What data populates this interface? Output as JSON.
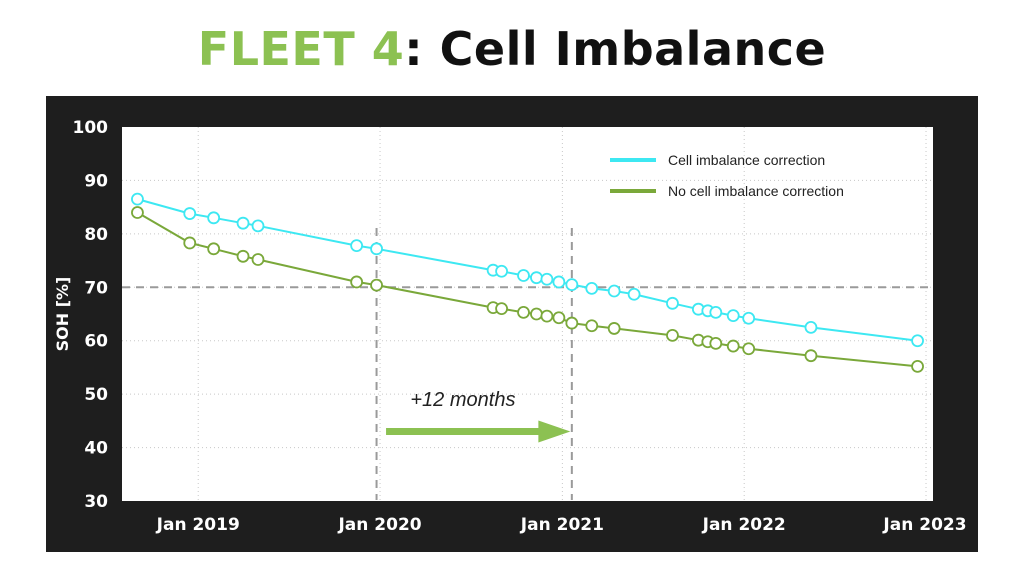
{
  "title": {
    "accent": "FLEET 4",
    "rest": ": Cell Imbalance"
  },
  "colors": {
    "accent": "#8cc152",
    "series_cyan": "#3de8f2",
    "series_green": "#7aa83a",
    "panel_bg": "#1e1e1e",
    "reference_line": "#9a9a9a",
    "arrow": "#8cc152"
  },
  "chart_data": {
    "type": "line",
    "ylabel": "SOH [%]",
    "xlabel": "",
    "ylim": [
      30,
      100
    ],
    "yticks": [
      30,
      40,
      50,
      60,
      70,
      80,
      90,
      100
    ],
    "xlim": [
      "2018-08-01",
      "2023-01-15"
    ],
    "xticks": [
      {
        "label": "Jan 2019",
        "date": "2019-01-01"
      },
      {
        "label": "Jan 2020",
        "date": "2020-01-01"
      },
      {
        "label": "Jan 2021",
        "date": "2021-01-01"
      },
      {
        "label": "Jan 2022",
        "date": "2022-01-01"
      },
      {
        "label": "Jan 2023",
        "date": "2023-01-01"
      }
    ],
    "grid": true,
    "legend_position": "top-right",
    "series": [
      {
        "name": "Cell imbalance correction",
        "color": "#3de8f2",
        "points": [
          {
            "x": "2018-09-01",
            "y": 86.5
          },
          {
            "x": "2018-12-15",
            "y": 83.8
          },
          {
            "x": "2019-02-01",
            "y": 83.0
          },
          {
            "x": "2019-04-01",
            "y": 82.0
          },
          {
            "x": "2019-05-01",
            "y": 81.5
          },
          {
            "x": "2019-11-15",
            "y": 77.8
          },
          {
            "x": "2019-12-25",
            "y": 77.2
          },
          {
            "x": "2020-08-15",
            "y": 73.2
          },
          {
            "x": "2020-09-01",
            "y": 73.0
          },
          {
            "x": "2020-10-15",
            "y": 72.2
          },
          {
            "x": "2020-11-10",
            "y": 71.8
          },
          {
            "x": "2020-12-01",
            "y": 71.5
          },
          {
            "x": "2020-12-25",
            "y": 71.0
          },
          {
            "x": "2021-01-20",
            "y": 70.5
          },
          {
            "x": "2021-03-01",
            "y": 69.8
          },
          {
            "x": "2021-04-15",
            "y": 69.3
          },
          {
            "x": "2021-05-25",
            "y": 68.7
          },
          {
            "x": "2021-08-10",
            "y": 67.0
          },
          {
            "x": "2021-10-01",
            "y": 65.9
          },
          {
            "x": "2021-10-20",
            "y": 65.6
          },
          {
            "x": "2021-11-05",
            "y": 65.3
          },
          {
            "x": "2021-12-10",
            "y": 64.7
          },
          {
            "x": "2022-01-10",
            "y": 64.2
          },
          {
            "x": "2022-05-15",
            "y": 62.5
          },
          {
            "x": "2022-12-15",
            "y": 60.0
          }
        ]
      },
      {
        "name": "No cell imbalance correction",
        "color": "#7aa83a",
        "points": [
          {
            "x": "2018-09-01",
            "y": 84.0
          },
          {
            "x": "2018-12-15",
            "y": 78.3
          },
          {
            "x": "2019-02-01",
            "y": 77.2
          },
          {
            "x": "2019-04-01",
            "y": 75.8
          },
          {
            "x": "2019-05-01",
            "y": 75.2
          },
          {
            "x": "2019-11-15",
            "y": 71.0
          },
          {
            "x": "2019-12-25",
            "y": 70.4
          },
          {
            "x": "2020-08-15",
            "y": 66.2
          },
          {
            "x": "2020-09-01",
            "y": 66.0
          },
          {
            "x": "2020-10-15",
            "y": 65.3
          },
          {
            "x": "2020-11-10",
            "y": 65.0
          },
          {
            "x": "2020-12-01",
            "y": 64.6
          },
          {
            "x": "2020-12-25",
            "y": 64.3
          },
          {
            "x": "2021-01-20",
            "y": 63.3
          },
          {
            "x": "2021-03-01",
            "y": 62.8
          },
          {
            "x": "2021-04-15",
            "y": 62.3
          },
          {
            "x": "2021-08-10",
            "y": 61.0
          },
          {
            "x": "2021-10-01",
            "y": 60.1
          },
          {
            "x": "2021-10-20",
            "y": 59.8
          },
          {
            "x": "2021-11-05",
            "y": 59.5
          },
          {
            "x": "2021-12-10",
            "y": 59.0
          },
          {
            "x": "2022-01-10",
            "y": 58.5
          },
          {
            "x": "2022-05-15",
            "y": 57.2
          },
          {
            "x": "2022-12-15",
            "y": 55.2
          }
        ]
      }
    ],
    "reference_lines": [
      {
        "orientation": "horizontal",
        "y": 70
      },
      {
        "orientation": "vertical",
        "x": "2019-12-25"
      },
      {
        "orientation": "vertical",
        "x": "2021-01-20"
      }
    ],
    "annotations": [
      {
        "text": "+12 months",
        "x": "2020-04-01",
        "y": 42.5,
        "arrow_from": "2020-01-01",
        "arrow_to": "2021-01-01",
        "arrow_y": 43.0
      }
    ]
  }
}
